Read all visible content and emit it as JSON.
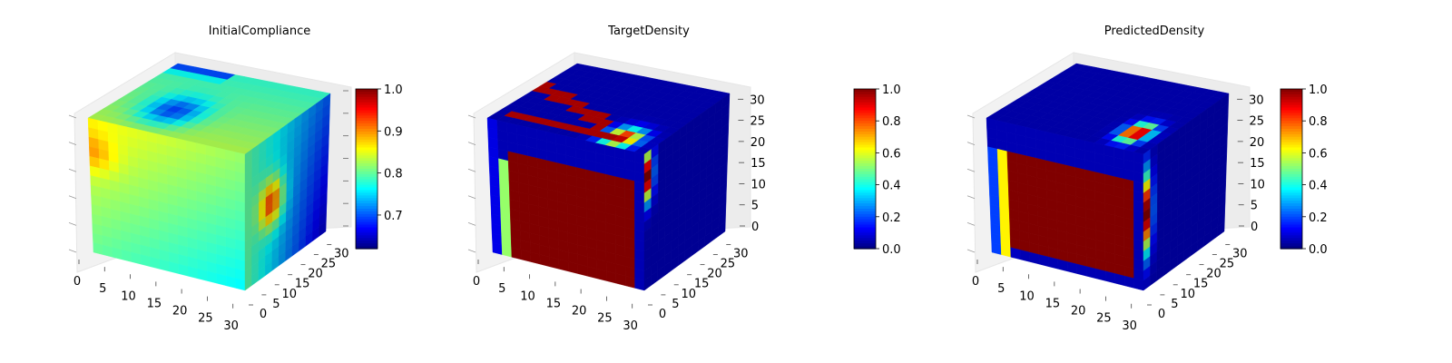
{
  "chart_data": [
    {
      "type": "heatmap",
      "subtype": "3d-voxel-cube",
      "title": "InitialCompliance",
      "axes": {
        "x": {
          "range": [
            0,
            32
          ],
          "ticks": [
            0,
            5,
            10,
            15,
            20,
            25,
            30
          ]
        },
        "y": {
          "range": [
            0,
            32
          ],
          "ticks": [
            0,
            5,
            10,
            15,
            20,
            25,
            30
          ]
        },
        "z": {
          "range": [
            0,
            32
          ],
          "ticks": []
        }
      },
      "colorbar": {
        "min": 0.62,
        "max": 1.0,
        "ticks": [
          "0.7",
          "0.8",
          "0.9",
          "1.0"
        ],
        "tick_values": [
          0.7,
          0.8,
          0.9,
          1.0
        ],
        "colormap": "jet"
      },
      "grid": true
    },
    {
      "type": "heatmap",
      "subtype": "3d-voxel-cube",
      "title": "TargetDensity",
      "axes": {
        "x": {
          "range": [
            0,
            32
          ],
          "ticks": [
            0,
            5,
            10,
            15,
            20,
            25,
            30
          ]
        },
        "y": {
          "range": [
            0,
            32
          ],
          "ticks": [
            0,
            5,
            10,
            15,
            20,
            25,
            30
          ]
        },
        "z": {
          "range": [
            0,
            32
          ],
          "ticks": [
            0,
            5,
            10,
            15,
            20,
            25,
            30
          ]
        }
      },
      "colorbar": {
        "min": 0.0,
        "max": 1.0,
        "ticks": [
          "0.0",
          "0.2",
          "0.4",
          "0.6",
          "0.8",
          "1.0"
        ],
        "tick_values": [
          0,
          0.2,
          0.4,
          0.6,
          0.8,
          1.0
        ],
        "colormap": "jet"
      },
      "grid": true
    },
    {
      "type": "heatmap",
      "subtype": "3d-voxel-cube",
      "title": "PredictedDensity",
      "axes": {
        "x": {
          "range": [
            0,
            32
          ],
          "ticks": [
            0,
            5,
            10,
            15,
            20,
            25,
            30
          ]
        },
        "y": {
          "range": [
            0,
            32
          ],
          "ticks": [
            0,
            5,
            10,
            15,
            20,
            25,
            30
          ]
        },
        "z": {
          "range": [
            0,
            32
          ],
          "ticks": [
            0,
            5,
            10,
            15,
            20,
            25,
            30
          ]
        }
      },
      "colorbar": {
        "min": 0.0,
        "max": 1.0,
        "ticks": [
          "0.0",
          "0.2",
          "0.4",
          "0.6",
          "0.8",
          "1.0"
        ],
        "tick_values": [
          0,
          0.2,
          0.4,
          0.6,
          0.8,
          1.0
        ],
        "colormap": "jet"
      },
      "grid": true
    }
  ]
}
